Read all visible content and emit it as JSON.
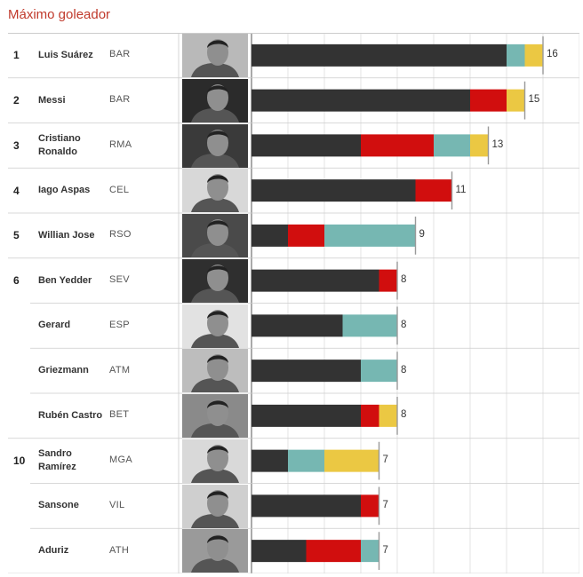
{
  "title": "Máximo goleador",
  "colors": {
    "series": [
      "#333333",
      "#d10e0e",
      "#76b7b2",
      "#ebc843"
    ],
    "grid": "#dddddd",
    "row_line": "#cccccc",
    "tick": "#999999"
  },
  "chart_data": {
    "type": "bar",
    "orientation": "horizontal",
    "stacked": true,
    "title": "Máximo goleador",
    "xlim": [
      0,
      18
    ],
    "grid": true,
    "categories": [
      "Luis Suárez",
      "Messi",
      "Cristiano Ronaldo",
      "Iago Aspas",
      "Willian Jose",
      "Ben Yedder",
      "Gerard",
      "Griezmann",
      "Rubén Castro",
      "Sandro Ramírez",
      "Sansone",
      "Aduriz"
    ],
    "series": [
      {
        "values": [
          14,
          12,
          6,
          9,
          2,
          7,
          5,
          6,
          6,
          2,
          6,
          3
        ]
      },
      {
        "values": [
          0,
          2,
          4,
          2,
          2,
          1,
          0,
          0,
          1,
          0,
          1,
          3
        ]
      },
      {
        "values": [
          1,
          0,
          2,
          0,
          5,
          0,
          3,
          2,
          0,
          2,
          0,
          1
        ]
      },
      {
        "values": [
          1,
          1,
          1,
          0,
          0,
          0,
          0,
          0,
          1,
          3,
          0,
          0
        ]
      }
    ],
    "totals": [
      16,
      15,
      13,
      11,
      9,
      8,
      8,
      8,
      8,
      7,
      7,
      7
    ]
  },
  "players": [
    {
      "rank": "1",
      "name": "Luis Suárez",
      "team": "BAR",
      "total": "16"
    },
    {
      "rank": "2",
      "name": "Messi",
      "team": "BAR",
      "total": "15"
    },
    {
      "rank": "3",
      "name": "Cristiano Ronaldo",
      "team": "RMA",
      "total": "13"
    },
    {
      "rank": "4",
      "name": "Iago Aspas",
      "team": "CEL",
      "total": "11"
    },
    {
      "rank": "5",
      "name": "Willian Jose",
      "team": "RSO",
      "total": "9"
    },
    {
      "rank": "6",
      "name": "Ben Yedder",
      "team": "SEV",
      "total": "8"
    },
    {
      "rank": "",
      "name": "Gerard",
      "team": "ESP",
      "total": "8"
    },
    {
      "rank": "",
      "name": "Griezmann",
      "team": "ATM",
      "total": "8"
    },
    {
      "rank": "",
      "name": "Rubén Castro",
      "team": "BET",
      "total": "8"
    },
    {
      "rank": "10",
      "name": "Sandro Ramírez",
      "team": "MGA",
      "total": "7"
    },
    {
      "rank": "",
      "name": "Sansone",
      "team": "VIL",
      "total": "7"
    },
    {
      "rank": "",
      "name": "Aduriz",
      "team": "ATH",
      "total": "7"
    }
  ]
}
